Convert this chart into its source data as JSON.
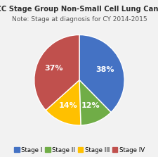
{
  "title": "AJCC Stage Group Non-Small Cell Lung Cancer",
  "subtitle": "Note: Stage at diagnosis for CY 2014-2015",
  "slices": [
    38,
    12,
    14,
    37
  ],
  "labels": [
    "38%",
    "12%",
    "14%",
    "37%"
  ],
  "legend_labels": [
    "Stage I",
    "Stage II",
    "Stage III",
    "Stage IV"
  ],
  "colors": [
    "#4472C4",
    "#70AD47",
    "#FFC000",
    "#C0504D"
  ],
  "startangle": 90,
  "background_color": "#F2F2F2",
  "title_fontsize": 7.2,
  "subtitle_fontsize": 6.5,
  "pct_fontsize": 8,
  "legend_fontsize": 6.2
}
